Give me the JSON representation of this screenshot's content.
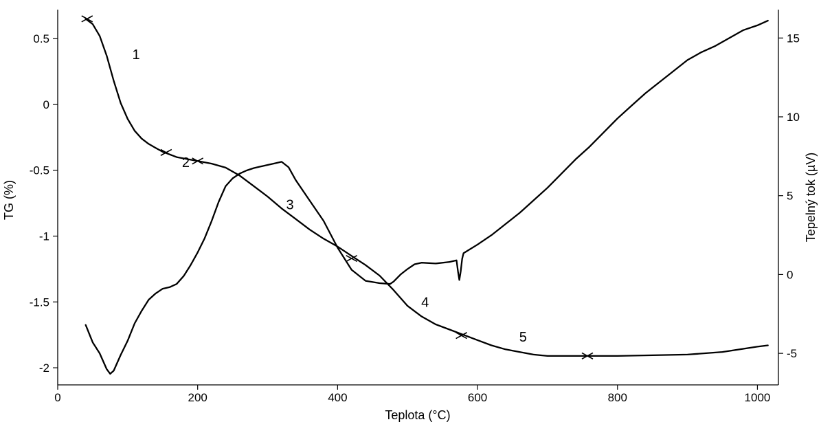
{
  "chart_data": {
    "type": "line",
    "title": "",
    "xlabel": "Teplota (°C)",
    "ylabel": "TG (%)",
    "y2label": "Tepelný tok (µV)",
    "xlim": [
      0,
      1030
    ],
    "ylim": [
      -2.13,
      0.72
    ],
    "y2lim": [
      -7.0,
      16.8
    ],
    "grid": false,
    "x_ticks": [
      {
        "value": 0,
        "label": "0"
      },
      {
        "value": 200,
        "label": "200"
      },
      {
        "value": 400,
        "label": "400"
      },
      {
        "value": 600,
        "label": "600"
      },
      {
        "value": 800,
        "label": "800"
      },
      {
        "value": 1000,
        "label": "1000"
      }
    ],
    "y_ticks": [
      {
        "value": 0.5,
        "label": "0.5"
      },
      {
        "value": 0,
        "label": "0"
      },
      {
        "value": -0.5,
        "label": "-0.5"
      },
      {
        "value": -1,
        "label": "-1"
      },
      {
        "value": -1.5,
        "label": "-1.5"
      },
      {
        "value": -2,
        "label": "-2"
      }
    ],
    "y2_ticks": [
      {
        "value": 15,
        "label": "15"
      },
      {
        "value": 10,
        "label": "10"
      },
      {
        "value": 5,
        "label": "5"
      },
      {
        "value": 0,
        "label": "0"
      },
      {
        "value": -5,
        "label": "-5"
      }
    ],
    "series": [
      {
        "axis": "left",
        "x": [
          40,
          50,
          60,
          70,
          80,
          90,
          100,
          110,
          120,
          130,
          140,
          150,
          160,
          170,
          180,
          190,
          200,
          220,
          240,
          260,
          280,
          300,
          320,
          340,
          360,
          380,
          400,
          420,
          440,
          460,
          480,
          500,
          520,
          540,
          560,
          580,
          600,
          620,
          640,
          660,
          680,
          700,
          720,
          740,
          760,
          780,
          800,
          850,
          900,
          950,
          1000,
          1015
        ],
        "values": [
          0.65,
          0.61,
          0.52,
          0.37,
          0.18,
          0.01,
          -0.11,
          -0.2,
          -0.26,
          -0.3,
          -0.33,
          -0.36,
          -0.38,
          -0.4,
          -0.41,
          -0.42,
          -0.43,
          -0.45,
          -0.48,
          -0.54,
          -0.62,
          -0.7,
          -0.79,
          -0.87,
          -0.95,
          -1.02,
          -1.08,
          -1.15,
          -1.22,
          -1.3,
          -1.41,
          -1.53,
          -1.61,
          -1.67,
          -1.71,
          -1.75,
          -1.79,
          -1.83,
          -1.86,
          -1.88,
          -1.9,
          -1.91,
          -1.91,
          -1.91,
          -1.91,
          -1.91,
          -1.91,
          -1.905,
          -1.9,
          -1.88,
          -1.84,
          -1.83
        ]
      },
      {
        "axis": "right",
        "x": [
          40,
          50,
          60,
          70,
          75,
          80,
          90,
          100,
          110,
          120,
          130,
          140,
          150,
          160,
          170,
          180,
          190,
          200,
          210,
          220,
          230,
          240,
          250,
          260,
          270,
          280,
          290,
          300,
          310,
          320,
          330,
          340,
          360,
          380,
          400,
          420,
          440,
          460,
          475,
          480,
          490,
          500,
          510,
          520,
          540,
          560,
          570,
          572,
          574,
          576,
          578,
          580,
          600,
          620,
          640,
          660,
          680,
          700,
          720,
          740,
          760,
          780,
          800,
          820,
          840,
          860,
          880,
          900,
          920,
          940,
          960,
          980,
          1000,
          1015
        ],
        "values": [
          -3.2,
          -4.3,
          -5.0,
          -6.0,
          -6.3,
          -6.1,
          -5.1,
          -4.2,
          -3.1,
          -2.3,
          -1.6,
          -1.2,
          -0.9,
          -0.8,
          -0.6,
          -0.1,
          0.6,
          1.4,
          2.3,
          3.4,
          4.6,
          5.6,
          6.1,
          6.4,
          6.6,
          6.75,
          6.85,
          6.95,
          7.05,
          7.15,
          6.8,
          6.0,
          4.7,
          3.4,
          1.7,
          0.3,
          -0.4,
          -0.55,
          -0.6,
          -0.45,
          0.0,
          0.35,
          0.65,
          0.75,
          0.7,
          0.8,
          0.9,
          0.2,
          -0.35,
          0.2,
          1.0,
          1.35,
          1.9,
          2.5,
          3.2,
          3.9,
          4.7,
          5.5,
          6.4,
          7.3,
          8.1,
          9.0,
          9.9,
          10.7,
          11.5,
          12.2,
          12.9,
          13.6,
          14.1,
          14.5,
          15.0,
          15.5,
          15.8,
          16.1
        ]
      }
    ],
    "markers": [
      {
        "x": 42,
        "y": 0.65
      },
      {
        "x": 155,
        "y": -0.365
      },
      {
        "x": 200,
        "y": -0.43
      },
      {
        "x": 420,
        "y": -1.17
      },
      {
        "x": 577,
        "y": -1.755
      },
      {
        "x": 757,
        "y": -1.91
      }
    ],
    "annotations": [
      {
        "text": "1",
        "x": 112,
        "y": 0.38
      },
      {
        "text": "2",
        "x": 183,
        "y": -0.44
      },
      {
        "text": "3",
        "x": 332,
        "y": -0.76
      },
      {
        "text": "4",
        "x": 525,
        "y": -1.5
      },
      {
        "text": "5",
        "x": 665,
        "y": -1.765
      }
    ]
  }
}
